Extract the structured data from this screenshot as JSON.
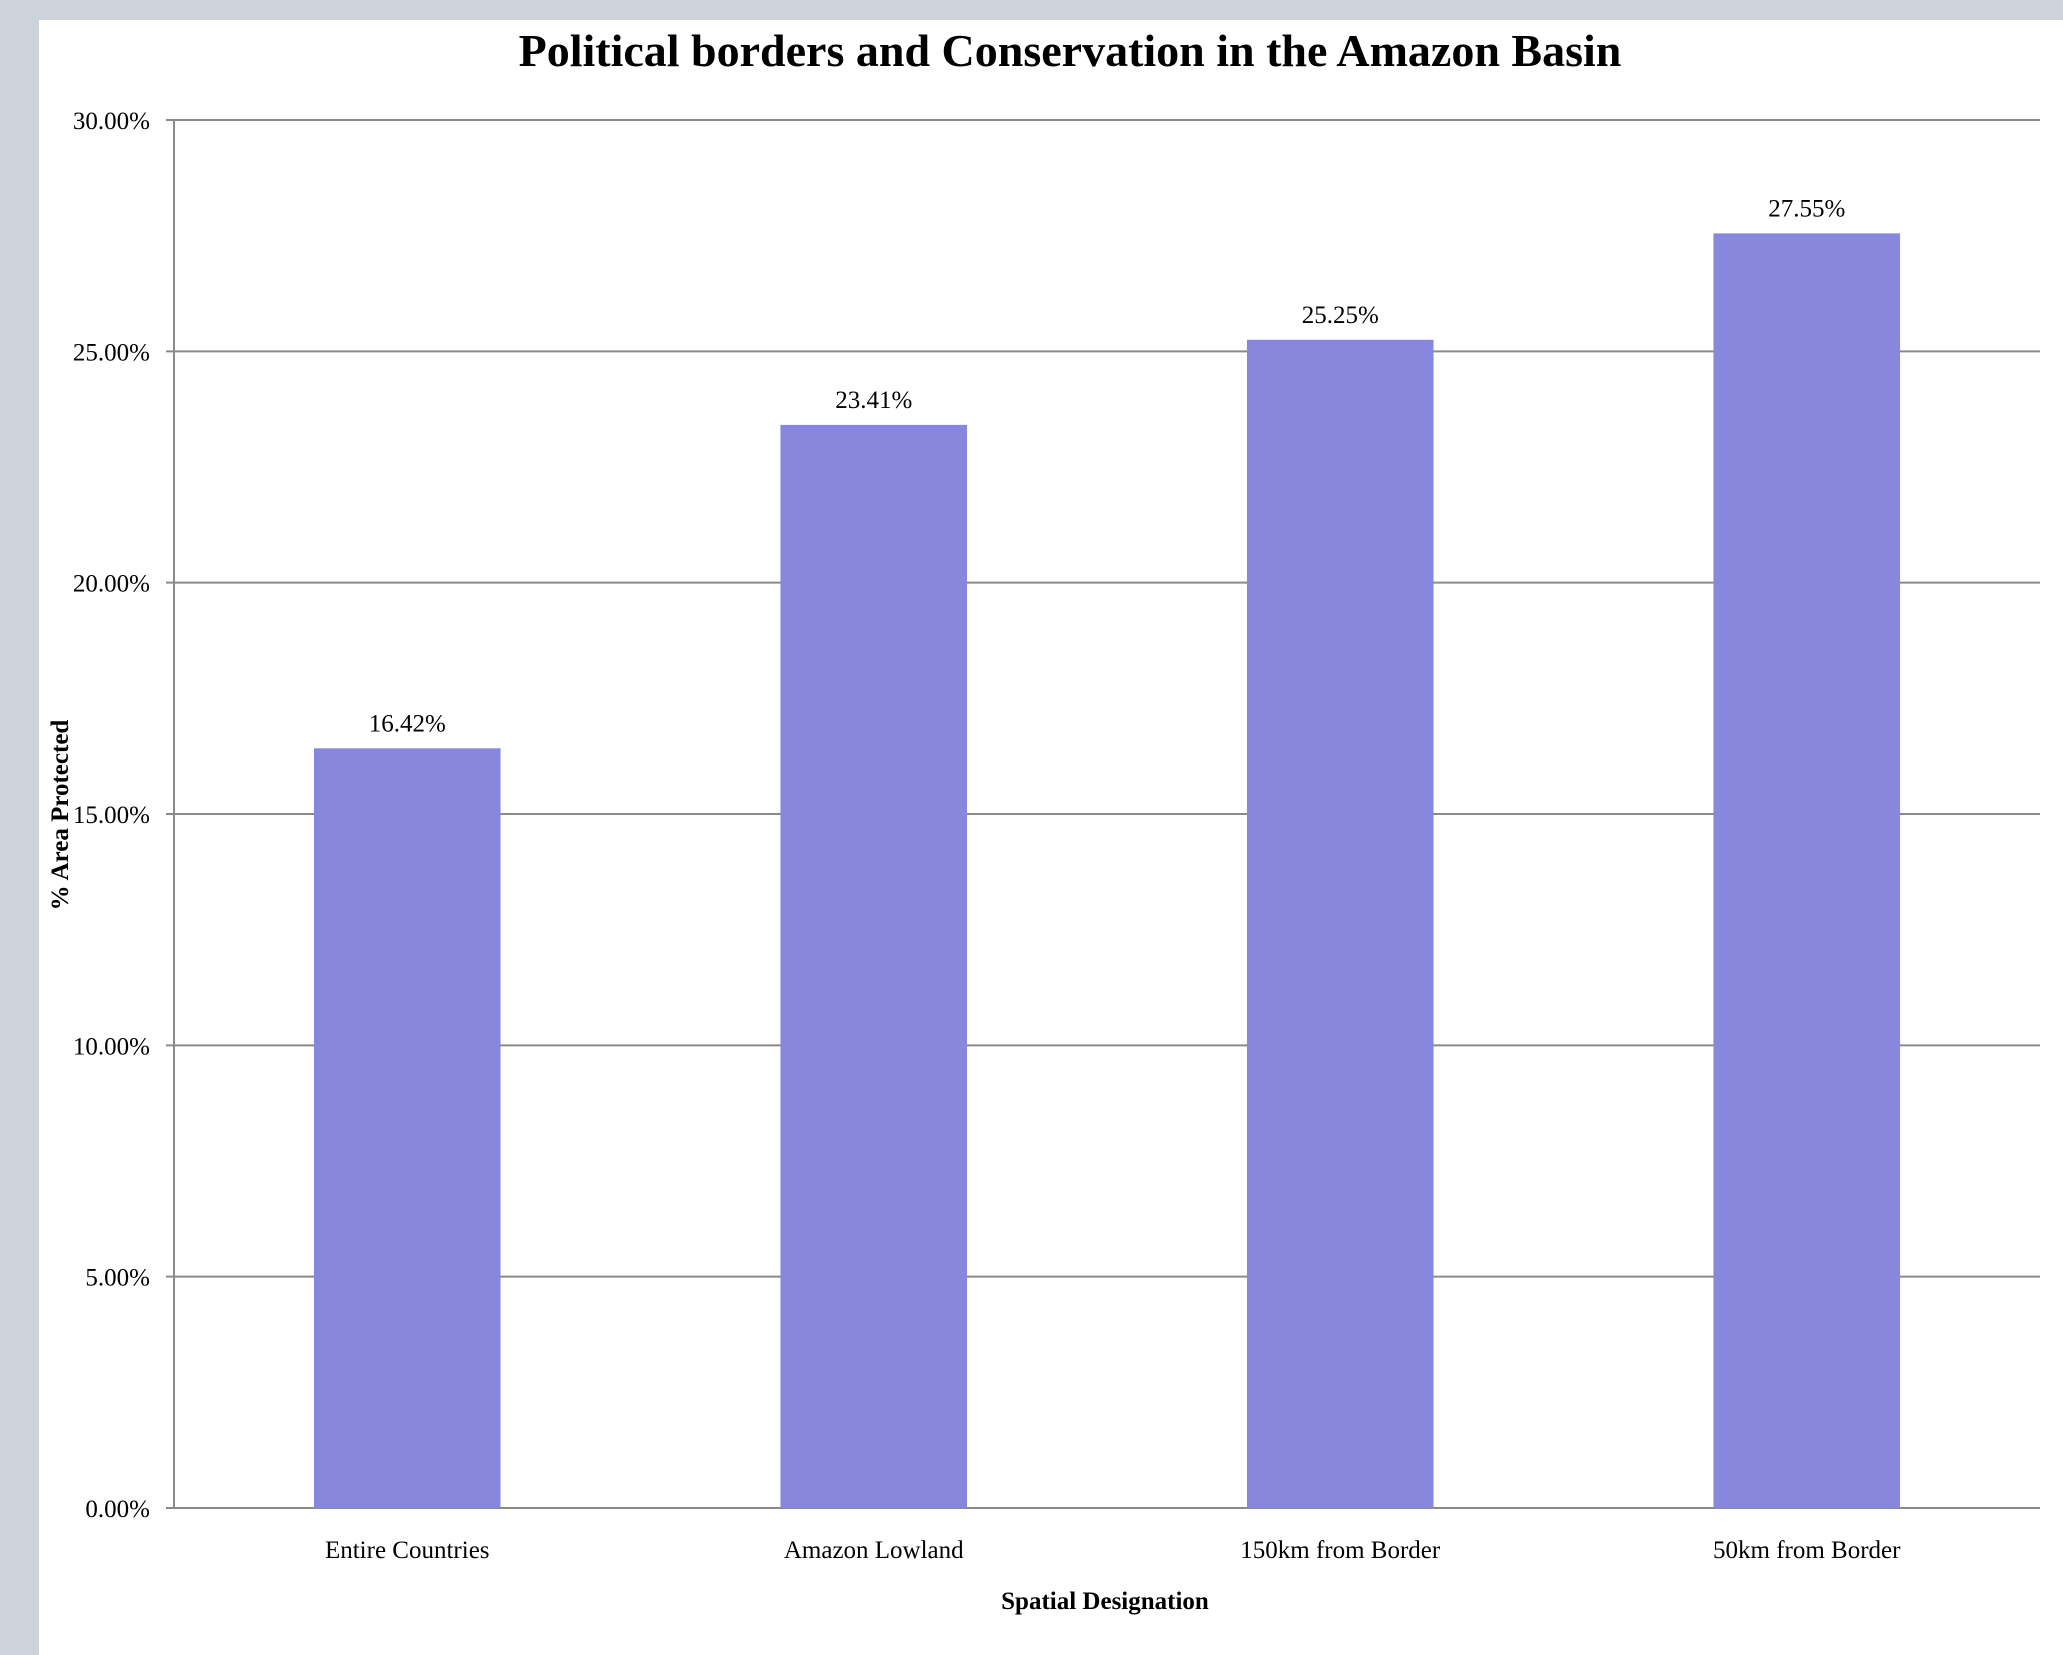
{
  "chart_data": {
    "type": "bar",
    "title": "Political borders and Conservation in the Amazon Basin",
    "xlabel": "Spatial Designation",
    "ylabel": "% Area Protected",
    "categories": [
      "Entire Countries",
      "Amazon Lowland",
      "150km from Border",
      "50km from Border"
    ],
    "values": [
      16.42,
      23.41,
      25.25,
      27.55
    ],
    "data_labels": [
      "16.42%",
      "23.41%",
      "25.25%",
      "27.55%"
    ],
    "ylim": [
      0,
      30
    ],
    "yticks": [
      0,
      5,
      10,
      15,
      20,
      25,
      30
    ],
    "ytick_labels": [
      "0.00%",
      "5.00%",
      "10.00%",
      "15.00%",
      "20.00%",
      "25.00%",
      "30.00%"
    ],
    "grid": true,
    "legend": "none",
    "bar_color": "#8787de"
  }
}
